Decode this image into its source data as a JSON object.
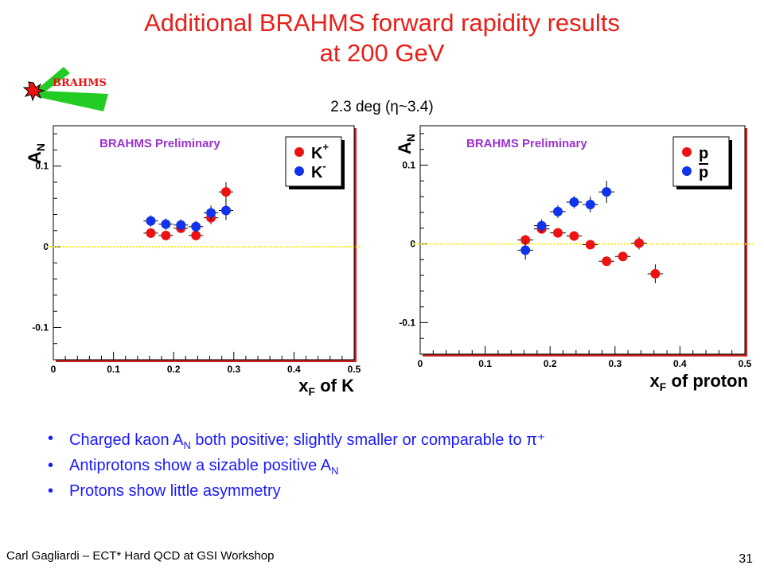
{
  "slide": {
    "title_line1": "Additional BRAHMS forward rapidity results",
    "title_line2": "at 200 GeV",
    "logo_text": "BRAHMS",
    "subtitle": "2.3 deg (η~3.4)",
    "bullets": [
      {
        "pre": "Charged kaon A",
        "sub": "N",
        "post": " both positive; slightly smaller or comparable to π⁺"
      },
      {
        "pre": "Antiprotons show a sizable positive A",
        "sub": "N",
        "post": ""
      },
      {
        "pre": "Protons show little asymmetry",
        "sub": "",
        "post": ""
      }
    ],
    "footer_left": "Carl Gagliardi – ECT* Hard QCD at GSI Workshop",
    "page_number": "31"
  },
  "colors": {
    "title": "#e8201a",
    "red_series": "#ee1111",
    "blue_series": "#1133ee",
    "zero_line": "#ffee00",
    "preliminary": "#9933cc",
    "bullets": "#1a1aff",
    "logo_green": "#22cc22"
  },
  "chart_data": [
    {
      "type": "scatter",
      "watermark": "BRAHMS Preliminary",
      "ylabel": "A",
      "ylabel_sub": "N",
      "xlabel": "x",
      "xlabel_sub": "F",
      "xlabel_rest": " of K",
      "xlim": [
        0,
        0.5
      ],
      "ylim": [
        -0.14,
        0.15
      ],
      "xticks": [
        "0",
        "0.1",
        "0.2",
        "0.3",
        "0.4",
        "0.5"
      ],
      "yticks": [
        "-0.1",
        "0",
        "0.1"
      ],
      "legend_position": "top-right",
      "zero_line": true,
      "series": [
        {
          "name": "K+",
          "legend_main": "K",
          "legend_sup": "+",
          "legend_overline": false,
          "color": "red",
          "points": [
            {
              "x": 0.162,
              "y": 0.017,
              "ex": 0.012,
              "ey": 0.006
            },
            {
              "x": 0.187,
              "y": 0.014,
              "ex": 0.012,
              "ey": 0.006
            },
            {
              "x": 0.212,
              "y": 0.023,
              "ex": 0.012,
              "ey": 0.006
            },
            {
              "x": 0.237,
              "y": 0.014,
              "ex": 0.012,
              "ey": 0.006
            },
            {
              "x": 0.262,
              "y": 0.036,
              "ex": 0.012,
              "ey": 0.008
            },
            {
              "x": 0.287,
              "y": 0.068,
              "ex": 0.012,
              "ey": 0.012
            }
          ]
        },
        {
          "name": "K-",
          "legend_main": "K",
          "legend_sup": "-",
          "legend_overline": false,
          "color": "blue",
          "points": [
            {
              "x": 0.162,
              "y": 0.032,
              "ex": 0.012,
              "ey": 0.007
            },
            {
              "x": 0.187,
              "y": 0.028,
              "ex": 0.012,
              "ey": 0.007
            },
            {
              "x": 0.212,
              "y": 0.027,
              "ex": 0.012,
              "ey": 0.007
            },
            {
              "x": 0.237,
              "y": 0.025,
              "ex": 0.012,
              "ey": 0.007
            },
            {
              "x": 0.262,
              "y": 0.042,
              "ex": 0.012,
              "ey": 0.009
            },
            {
              "x": 0.287,
              "y": 0.045,
              "ex": 0.012,
              "ey": 0.012
            }
          ]
        }
      ]
    },
    {
      "type": "scatter",
      "watermark": "BRAHMS Preliminary",
      "ylabel": "A",
      "ylabel_sub": "N",
      "xlabel": "x",
      "xlabel_sub": "F",
      "xlabel_rest": " of proton",
      "xlim": [
        0,
        0.5
      ],
      "ylim": [
        -0.14,
        0.15
      ],
      "xticks": [
        "0",
        "0.1",
        "0.2",
        "0.3",
        "0.4",
        "0.5"
      ],
      "yticks": [
        "-0.1",
        "0",
        "0.1"
      ],
      "legend_position": "top-right",
      "zero_line": true,
      "series": [
        {
          "name": "p",
          "legend_main": "p",
          "legend_sup": "",
          "legend_overline": false,
          "color": "red",
          "points": [
            {
              "x": 0.162,
              "y": 0.005,
              "ex": 0.012,
              "ey": 0.006
            },
            {
              "x": 0.187,
              "y": 0.019,
              "ex": 0.012,
              "ey": 0.006
            },
            {
              "x": 0.212,
              "y": 0.014,
              "ex": 0.012,
              "ey": 0.006
            },
            {
              "x": 0.237,
              "y": 0.01,
              "ex": 0.012,
              "ey": 0.006
            },
            {
              "x": 0.262,
              "y": -0.001,
              "ex": 0.012,
              "ey": 0.006
            },
            {
              "x": 0.287,
              "y": -0.022,
              "ex": 0.012,
              "ey": 0.006
            },
            {
              "x": 0.312,
              "y": -0.016,
              "ex": 0.012,
              "ey": 0.006
            },
            {
              "x": 0.337,
              "y": 0.001,
              "ex": 0.012,
              "ey": 0.008
            },
            {
              "x": 0.362,
              "y": -0.038,
              "ex": 0.012,
              "ey": 0.012
            }
          ]
        },
        {
          "name": "p̄",
          "legend_main": "p",
          "legend_sup": "",
          "legend_overline": true,
          "color": "blue",
          "points": [
            {
              "x": 0.162,
              "y": -0.008,
              "ex": 0.012,
              "ey": 0.012
            },
            {
              "x": 0.187,
              "y": 0.023,
              "ex": 0.012,
              "ey": 0.008
            },
            {
              "x": 0.212,
              "y": 0.041,
              "ex": 0.012,
              "ey": 0.008
            },
            {
              "x": 0.237,
              "y": 0.053,
              "ex": 0.012,
              "ey": 0.008
            },
            {
              "x": 0.262,
              "y": 0.05,
              "ex": 0.012,
              "ey": 0.01
            },
            {
              "x": 0.287,
              "y": 0.066,
              "ex": 0.012,
              "ey": 0.014
            }
          ]
        }
      ]
    }
  ]
}
